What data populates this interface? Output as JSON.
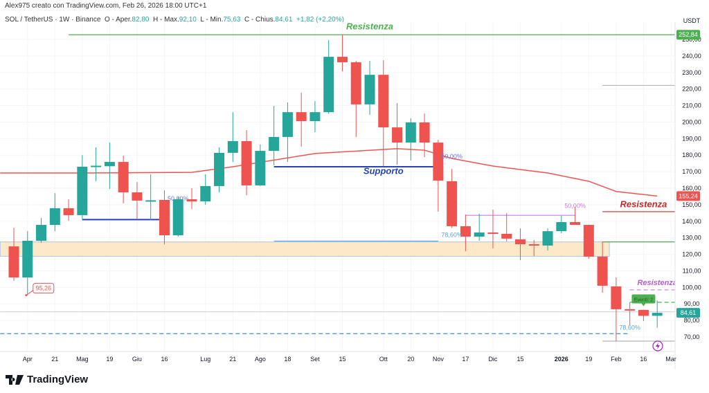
{
  "header": {
    "credit": "Alex975 creato con TradingView.com, Feb 26, 2026 18:00 UTC+1",
    "symbol": "SOL / TetherUS · 1W · Binance",
    "open_label": "O - Aper.",
    "open": "82,80",
    "high_label": "H - Max.",
    "high": "92,10",
    "low_label": "L - Min.",
    "low": "75,63",
    "close_label": "C - Chius.",
    "close": "84,61",
    "change": "+1,82 (+2,20%)"
  },
  "logo": {
    "text": "TradingView"
  },
  "colors": {
    "up": "#26a69a",
    "down": "#ef5350",
    "ma": "#ef5350",
    "support": "#2443b8",
    "resistance_green": "#4caf50",
    "zone": "#fde9c9",
    "fib_purple": "#c77ddb",
    "fib_blue": "#5ba3d9"
  },
  "chart_data": {
    "type": "candlestick",
    "currency": "USDT",
    "ylim": [
      65,
      258
    ],
    "grid": true,
    "y_ticks": [
      "70,00",
      "80,00",
      "90,00",
      "100,00",
      "110,00",
      "120,00",
      "130,00",
      "140,00",
      "150,00",
      "160,00",
      "170,00",
      "180,00",
      "190,00",
      "200,00",
      "210,00",
      "220,00",
      "230,00",
      "240,00",
      "250,00"
    ],
    "x_ticks": [
      {
        "date": "2025-04-07",
        "label": "Apr"
      },
      {
        "date": "2025-04-21",
        "label": "21"
      },
      {
        "date": "2025-05-05",
        "label": "Mag"
      },
      {
        "date": "2025-05-19",
        "label": "19"
      },
      {
        "date": "2025-06-02",
        "label": "Giu"
      },
      {
        "date": "2025-06-16",
        "label": "16"
      },
      {
        "date": "2025-07-07",
        "label": "Lug"
      },
      {
        "date": "2025-07-21",
        "label": "21"
      },
      {
        "date": "2025-08-04",
        "label": "Ago"
      },
      {
        "date": "2025-08-18",
        "label": "18"
      },
      {
        "date": "2025-09-01",
        "label": "Set"
      },
      {
        "date": "2025-09-15",
        "label": "15"
      },
      {
        "date": "2025-10-06",
        "label": "Ott"
      },
      {
        "date": "2025-10-20",
        "label": "20"
      },
      {
        "date": "2025-11-03",
        "label": "Nov"
      },
      {
        "date": "2025-11-17",
        "label": "17"
      },
      {
        "date": "2025-12-01",
        "label": "Dic"
      },
      {
        "date": "2025-12-15",
        "label": "15"
      },
      {
        "date": "2026-01-05",
        "label": "2026",
        "bold": true
      },
      {
        "date": "2026-01-19",
        "label": "19"
      },
      {
        "date": "2026-02-02",
        "label": "Feb"
      },
      {
        "date": "2026-02-16",
        "label": "16"
      },
      {
        "date": "2026-03-02",
        "label": "Mar"
      }
    ],
    "candles_columns": [
      "date",
      "open",
      "high",
      "low",
      "close"
    ],
    "candles": [
      [
        "2025-03-31",
        124.8,
        136.1,
        104,
        106
      ],
      [
        "2025-04-07",
        106,
        134,
        95.26,
        128.2
      ],
      [
        "2025-04-14",
        128.2,
        142,
        127,
        137.8
      ],
      [
        "2025-04-21",
        137.8,
        157,
        134,
        147.9
      ],
      [
        "2025-04-28",
        147.9,
        153.3,
        140.3,
        143.7
      ],
      [
        "2025-05-05",
        143.7,
        180,
        141,
        173
      ],
      [
        "2025-05-12",
        173.2,
        184.7,
        164.2,
        173.6
      ],
      [
        "2025-05-19",
        173.3,
        187.6,
        159.6,
        175.9
      ],
      [
        "2025-05-26",
        175.9,
        179.7,
        150.8,
        157.5
      ],
      [
        "2025-06-02",
        157.5,
        163.8,
        141.2,
        152.5
      ],
      [
        "2025-06-09",
        152.4,
        168.4,
        140.7,
        152.7
      ],
      [
        "2025-06-16",
        152.9,
        158.7,
        126,
        131.5
      ],
      [
        "2025-06-23",
        131.5,
        154.6,
        130.7,
        153.3
      ],
      [
        "2025-06-30",
        153.3,
        160,
        147.4,
        152
      ],
      [
        "2025-07-07",
        152,
        168.4,
        150,
        161.3
      ],
      [
        "2025-07-14",
        161.3,
        184.7,
        157.5,
        181.4
      ],
      [
        "2025-07-21",
        181.4,
        206,
        175.9,
        188.5
      ],
      [
        "2025-07-28",
        188.5,
        195.2,
        155.8,
        161.7
      ],
      [
        "2025-08-04",
        161.7,
        186.4,
        161.3,
        182.6
      ],
      [
        "2025-08-11",
        182.6,
        209.8,
        173.8,
        191
      ],
      [
        "2025-08-18",
        191,
        211.9,
        175.9,
        206
      ],
      [
        "2025-08-25",
        206,
        217.8,
        185.1,
        200.6
      ],
      [
        "2025-09-01",
        200.6,
        212.7,
        193.9,
        206
      ],
      [
        "2025-09-08",
        206,
        249.6,
        205,
        239.5
      ],
      [
        "2025-09-15",
        239.5,
        252.84,
        230.7,
        236.2
      ],
      [
        "2025-09-22",
        236.2,
        237,
        191,
        210.7
      ],
      [
        "2025-09-29",
        210.7,
        237,
        204.4,
        228.6
      ],
      [
        "2025-10-06",
        228.6,
        237.4,
        173.4,
        196.8
      ],
      [
        "2025-10-13",
        196.8,
        211.5,
        174.2,
        187.6
      ],
      [
        "2025-10-20",
        187.6,
        202.3,
        176.7,
        199.8
      ],
      [
        "2025-10-27",
        199.8,
        205.2,
        178.8,
        187.6
      ],
      [
        "2025-11-03",
        187.6,
        189.3,
        145.8,
        164.6
      ],
      [
        "2025-11-10",
        164.2,
        171.7,
        136,
        137
      ],
      [
        "2025-11-17",
        137,
        144.1,
        121.9,
        130.7
      ],
      [
        "2025-11-24",
        130.7,
        144.5,
        128.2,
        133.2
      ],
      [
        "2025-12-01",
        133.2,
        147,
        123.6,
        132.4
      ],
      [
        "2025-12-08",
        132.4,
        144.9,
        127.8,
        129.5
      ],
      [
        "2025-12-15",
        129.1,
        135.7,
        116.5,
        126.1
      ],
      [
        "2025-12-22",
        126.1,
        128.6,
        119,
        125.3
      ],
      [
        "2025-12-29",
        125.3,
        135.7,
        122.3,
        134
      ],
      [
        "2026-01-05",
        134,
        143.3,
        132.8,
        139.5
      ],
      [
        "2026-01-12",
        139.5,
        148.7,
        137.8,
        137.8
      ],
      [
        "2026-01-19",
        137.8,
        138,
        117.3,
        118.6
      ],
      [
        "2026-01-26",
        118.6,
        127.8,
        96.8,
        101
      ],
      [
        "2026-02-02",
        100.6,
        106,
        67.5,
        86.8
      ],
      [
        "2026-02-09",
        86.8,
        91,
        77,
        86
      ],
      [
        "2026-02-16",
        86.4,
        86.5,
        79.6,
        82.79
      ],
      [
        "2026-02-23",
        82.8,
        92.1,
        75.63,
        84.61
      ]
    ],
    "moving_average": {
      "last_value": "155,24",
      "points": [
        [
          "2025-03-24",
          169.2
        ],
        [
          "2025-05-05",
          169.2
        ],
        [
          "2025-06-30",
          169.6
        ],
        [
          "2025-07-21",
          173
        ],
        [
          "2025-09-01",
          181
        ],
        [
          "2025-10-13",
          183.9
        ],
        [
          "2025-10-27",
          183
        ],
        [
          "2025-11-10",
          178
        ],
        [
          "2025-12-01",
          173.4
        ],
        [
          "2025-12-29",
          169.2
        ],
        [
          "2026-01-19",
          164.2
        ],
        [
          "2026-02-02",
          158
        ],
        [
          "2026-02-23",
          155.24
        ]
      ]
    },
    "price_labels": [
      {
        "value": 252.84,
        "text": "252,84",
        "color": "#4caf50"
      },
      {
        "value": 155.24,
        "text": "155,24",
        "color": "#ef5350"
      },
      {
        "value": 84.61,
        "text": "84,61",
        "color": "#26a69a"
      }
    ],
    "zone": {
      "from": "2025-03-24",
      "to": "2026-01-26",
      "low": 118.8,
      "high": 127.5
    },
    "lines": [
      {
        "name": "resistance-top",
        "price": 252.84,
        "from": "2025-04-28",
        "to": null,
        "color": "#4caf50",
        "dash": false
      },
      {
        "name": "gray-level-222",
        "price": 222.2,
        "from": "2026-01-26",
        "to": null,
        "color": "#b2b5be",
        "dash": false
      },
      {
        "name": "support",
        "price": 173,
        "from": "2025-08-11",
        "to": "2025-11-03",
        "color": "#2443b8",
        "dash": false
      },
      {
        "name": "blue-level-141",
        "price": 141,
        "from": "2025-05-05",
        "to": "2025-06-16",
        "color": "#2443b8",
        "dash": false
      },
      {
        "name": "blue-level-128",
        "price": 128,
        "from": "2025-08-11",
        "to": "2025-11-03",
        "color": "#5ba3d9",
        "dash": false
      },
      {
        "name": "fib-purple-level",
        "price": 143.6,
        "from": "2025-11-17",
        "to": "2026-01-12",
        "color": "#c77ddb",
        "dash": false
      },
      {
        "name": "resistance-red",
        "price": 145.8,
        "from": "2026-01-26",
        "to": null,
        "color": "#c62828",
        "dash": false
      },
      {
        "name": "green-level-127",
        "price": 127.5,
        "from": "2026-01-26",
        "to": null,
        "color": "#4caf50",
        "dash": false
      },
      {
        "name": "resistance-purple-dashed",
        "price": 98.5,
        "from": "2026-02-09",
        "to": null,
        "color": "#c77ddb",
        "dash": true
      },
      {
        "name": "green-dashed",
        "price": 91,
        "from": "2026-02-09",
        "to": null,
        "color": "#4caf50",
        "dash": true
      },
      {
        "name": "blue-dashed-72",
        "price": 72,
        "from": "2025-03-24",
        "to": "2026-02-09",
        "color": "#3d8fd1",
        "dash": true
      },
      {
        "name": "gray-level-67",
        "price": 67.5,
        "from": "2026-01-26",
        "to": null,
        "color": "#b2b5be",
        "dash": false
      },
      {
        "name": "current-price-line",
        "price": 85.2,
        "from": "2025-03-24",
        "to": null,
        "color": "#d1d4dc",
        "dash": false
      }
    ],
    "labels": [
      {
        "name": "resistance-top-label",
        "text": "Resistenza",
        "date": "2025-09-29",
        "price": 256,
        "color": "#4caf50",
        "italic": true,
        "bold": true,
        "size": 13
      },
      {
        "name": "support-label",
        "text": "Supporto",
        "date": "2025-10-06",
        "price": 168.5,
        "color": "#2443b8",
        "italic": true,
        "bold": true,
        "size": 13
      },
      {
        "name": "resistance-red-label",
        "text": "Resistenza",
        "date": "2026-02-16",
        "price": 148.5,
        "color": "#c62828",
        "italic": true,
        "bold": true,
        "size": 13
      },
      {
        "name": "resistance-purple-label",
        "text": "Resistenza",
        "date": "2026-02-23",
        "price": 101.3,
        "color": "#b05fc9",
        "italic": true,
        "bold": true,
        "size": 11
      },
      {
        "name": "fib-50-label-1",
        "text": "50,00%",
        "date": "2025-06-23",
        "price": 152.5,
        "color": "#6a74d8",
        "size": 9,
        "behind": true
      },
      {
        "name": "fib-50-label-2",
        "text": "50,00%",
        "date": "2025-11-10",
        "price": 178,
        "color": "#6a74d8",
        "size": 9
      },
      {
        "name": "fib-786-label-1",
        "text": "78,60%",
        "date": "2025-11-10",
        "price": 130.5,
        "color": "#5ba3d9",
        "size": 9
      },
      {
        "name": "fib-50-label-3",
        "text": "50,00%",
        "date": "2026-01-12",
        "price": 148,
        "color": "#c77ddb",
        "size": 9
      },
      {
        "name": "fib-786-label-2",
        "text": "78,60%",
        "date": "2026-02-09",
        "price": 74.5,
        "color": "#5ba3d9",
        "size": 9
      }
    ],
    "low_marker": {
      "date": "2025-04-07",
      "price": 95.26,
      "text": "95,26"
    },
    "events_tag": {
      "text": "Eventi: 2",
      "date": "2026-02-16",
      "price": 92
    },
    "lightning_icon": "lightning-icon"
  }
}
